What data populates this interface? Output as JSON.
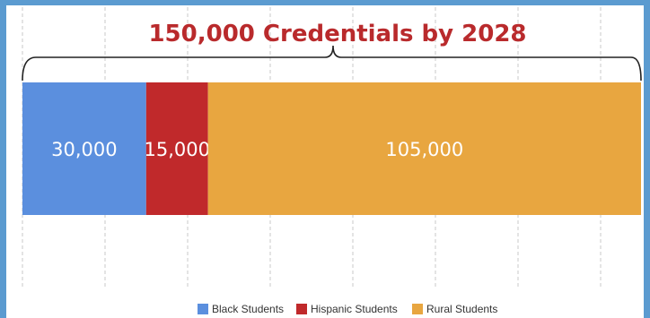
{
  "chart_data": {
    "type": "bar",
    "orientation": "horizontal",
    "stacked": true,
    "title": "150,000 Credentials by 2028",
    "total": 150000,
    "xlim": [
      0,
      150000
    ],
    "grid": true,
    "legend_position": "bottom",
    "title_color": "#b92a2c",
    "series": [
      {
        "name": "Black Students",
        "value": 30000,
        "label": "30,000",
        "color": "#5b8fde"
      },
      {
        "name": "Hispanic Students",
        "value": 15000,
        "label": "15,000",
        "color": "#c0292b"
      },
      {
        "name": "Rural Students",
        "value": 105000,
        "label": "105,000",
        "color": "#e8a640"
      }
    ]
  }
}
